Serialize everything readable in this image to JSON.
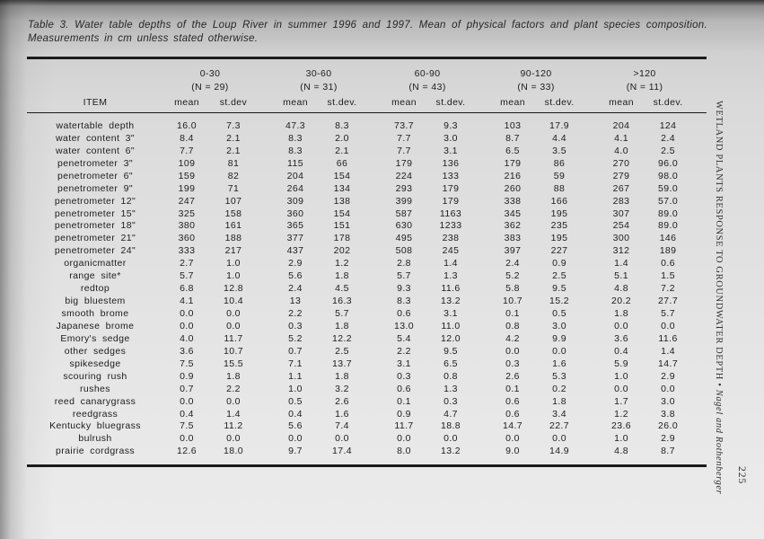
{
  "caption": {
    "line1": "Table 3. Water table depths of the Loup River in summer 1996 and 1997. Mean of physical factors and plant species composition.",
    "line2": "Measurements in cm unless stated otherwise."
  },
  "sidebar": {
    "running_head": "WETLAND PLANTS RESPONSE TO GROUNDWATER DEPTH",
    "separator": " • ",
    "authors": "Nagel and Rothenberger",
    "page_number": "225"
  },
  "table": {
    "item_header": "ITEM",
    "groups": [
      {
        "range": "0-30",
        "n": "(N = 29)",
        "mean_label": "mean",
        "stdev_label": "st.dev"
      },
      {
        "range": "30-60",
        "n": "(N = 31)",
        "mean_label": "mean",
        "stdev_label": "st.dev."
      },
      {
        "range": "60-90",
        "n": "(N = 43)",
        "mean_label": "mean",
        "stdev_label": "st.dev."
      },
      {
        "range": "90-120",
        "n": "(N = 33)",
        "mean_label": "mean",
        "stdev_label": "st.dev."
      },
      {
        "range": ">120",
        "n": "(N = 11)",
        "mean_label": "mean",
        "stdev_label": "st.dev."
      }
    ],
    "rows": [
      {
        "item": "watertable depth",
        "values": [
          "16.0",
          "7.3",
          "47.3",
          "8.3",
          "73.7",
          "9.3",
          "103",
          "17.9",
          "204",
          "124"
        ]
      },
      {
        "item": "water content 3\"",
        "values": [
          "8.4",
          "2.1",
          "8.3",
          "2.0",
          "7.7",
          "3.0",
          "8.7",
          "4.4",
          "4.1",
          "2.4"
        ]
      },
      {
        "item": "water content 6\"",
        "values": [
          "7.7",
          "2.1",
          "8.3",
          "2.1",
          "7.7",
          "3.1",
          "6.5",
          "3.5",
          "4.0",
          "2.5"
        ]
      },
      {
        "item": "penetrometer 3\"",
        "values": [
          "109",
          "81",
          "115",
          "66",
          "179",
          "136",
          "179",
          "86",
          "270",
          "96.0"
        ]
      },
      {
        "item": "penetrometer 6\"",
        "values": [
          "159",
          "82",
          "204",
          "154",
          "224",
          "133",
          "216",
          "59",
          "279",
          "98.0"
        ]
      },
      {
        "item": "penetrometer 9\"",
        "values": [
          "199",
          "71",
          "264",
          "134",
          "293",
          "179",
          "260",
          "88",
          "267",
          "59.0"
        ]
      },
      {
        "item": "penetrometer 12\"",
        "values": [
          "247",
          "107",
          "309",
          "138",
          "399",
          "179",
          "338",
          "166",
          "283",
          "57.0"
        ]
      },
      {
        "item": "penetrometer 15\"",
        "values": [
          "325",
          "158",
          "360",
          "154",
          "587",
          "1163",
          "345",
          "195",
          "307",
          "89.0"
        ]
      },
      {
        "item": "penetrometer 18\"",
        "values": [
          "380",
          "161",
          "365",
          "151",
          "630",
          "1233",
          "362",
          "235",
          "254",
          "89.0"
        ]
      },
      {
        "item": "penetrometer 21\"",
        "values": [
          "360",
          "188",
          "377",
          "178",
          "495",
          "238",
          "383",
          "195",
          "300",
          "146"
        ]
      },
      {
        "item": "penetrometer 24\"",
        "values": [
          "333",
          "217",
          "437",
          "202",
          "508",
          "245",
          "397",
          "227",
          "312",
          "189"
        ]
      },
      {
        "item": "organicmatter",
        "values": [
          "2.7",
          "1.0",
          "2.9",
          "1.2",
          "2.8",
          "1.4",
          "2.4",
          "0.9",
          "1.4",
          "0.6"
        ]
      },
      {
        "item": "range site*",
        "values": [
          "5.7",
          "1.0",
          "5.6",
          "1.8",
          "5.7",
          "1.3",
          "5.2",
          "2.5",
          "5.1",
          "1.5"
        ]
      },
      {
        "item": "redtop",
        "values": [
          "6.8",
          "12.8",
          "2.4",
          "4.5",
          "9.3",
          "11.6",
          "5.8",
          "9.5",
          "4.8",
          "7.2"
        ]
      },
      {
        "item": "big bluestem",
        "values": [
          "4.1",
          "10.4",
          "13",
          "16.3",
          "8.3",
          "13.2",
          "10.7",
          "15.2",
          "20.2",
          "27.7"
        ]
      },
      {
        "item": "smooth brome",
        "values": [
          "0.0",
          "0.0",
          "2.2",
          "5.7",
          "0.6",
          "3.1",
          "0.1",
          "0.5",
          "1.8",
          "5.7"
        ]
      },
      {
        "item": "Japanese brome",
        "values": [
          "0.0",
          "0.0",
          "0.3",
          "1.8",
          "13.0",
          "11.0",
          "0.8",
          "3.0",
          "0.0",
          "0.0"
        ]
      },
      {
        "item": "Emory's sedge",
        "values": [
          "4.0",
          "11.7",
          "5.2",
          "12.2",
          "5.4",
          "12.0",
          "4.2",
          "9.9",
          "3.6",
          "11.6"
        ]
      },
      {
        "item": "other sedges",
        "values": [
          "3.6",
          "10.7",
          "0.7",
          "2.5",
          "2.2",
          "9.5",
          "0.0",
          "0.0",
          "0.4",
          "1.4"
        ]
      },
      {
        "item": "spikesedge",
        "values": [
          "7.5",
          "15.5",
          "7.1",
          "13.7",
          "3.1",
          "6.5",
          "0.3",
          "1.6",
          "5.9",
          "14.7"
        ]
      },
      {
        "item": "scouring rush",
        "values": [
          "0.9",
          "1.8",
          "1.1",
          "1.8",
          "0.3",
          "0.8",
          "2.6",
          "5.3",
          "1.0",
          "2.9"
        ]
      },
      {
        "item": "rushes",
        "values": [
          "0.7",
          "2.2",
          "1.0",
          "3.2",
          "0.6",
          "1.3",
          "0.1",
          "0.2",
          "0.0",
          "0.0"
        ]
      },
      {
        "item": "reed canarygrass",
        "values": [
          "0.0",
          "0.0",
          "0.5",
          "2.6",
          "0.1",
          "0.3",
          "0.6",
          "1.8",
          "1.7",
          "3.0"
        ]
      },
      {
        "item": "reedgrass",
        "values": [
          "0.4",
          "1.4",
          "0.4",
          "1.6",
          "0.9",
          "4.7",
          "0.6",
          "3.4",
          "1.2",
          "3.8"
        ]
      },
      {
        "item": "Kentucky bluegrass",
        "values": [
          "7.5",
          "11.2",
          "5.6",
          "7.4",
          "11.7",
          "18.8",
          "14.7",
          "22.7",
          "23.6",
          "26.0"
        ]
      },
      {
        "item": "bulrush",
        "values": [
          "0.0",
          "0.0",
          "0.0",
          "0.0",
          "0.0",
          "0.0",
          "0.0",
          "0.0",
          "1.0",
          "2.9"
        ]
      },
      {
        "item": "prairie cordgrass",
        "values": [
          "12.6",
          "18.0",
          "9.7",
          "17.4",
          "8.0",
          "13.2",
          "9.0",
          "14.9",
          "4.8",
          "8.7"
        ]
      }
    ]
  }
}
